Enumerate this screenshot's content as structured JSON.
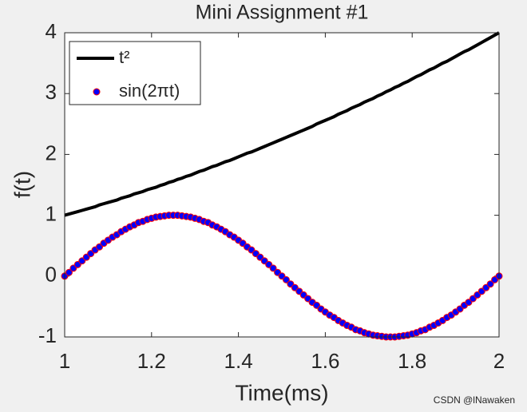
{
  "chart_data": {
    "type": "line",
    "title": "Mini Assignment #1",
    "xlabel": "Time(ms)",
    "ylabel": "f(t)",
    "x": [
      1,
      1.01,
      1.02,
      1.03,
      1.04,
      1.05,
      1.06,
      1.07,
      1.08,
      1.09,
      1.1,
      1.11,
      1.12,
      1.13,
      1.14,
      1.15,
      1.16,
      1.17,
      1.18,
      1.19,
      1.2,
      1.21,
      1.22,
      1.23,
      1.24,
      1.25,
      1.26,
      1.27,
      1.28,
      1.29,
      1.3,
      1.31,
      1.32,
      1.33,
      1.34,
      1.35,
      1.36,
      1.37,
      1.38,
      1.39,
      1.4,
      1.41,
      1.42,
      1.43,
      1.44,
      1.45,
      1.46,
      1.47,
      1.48,
      1.49,
      1.5,
      1.51,
      1.52,
      1.53,
      1.54,
      1.55,
      1.56,
      1.57,
      1.58,
      1.59,
      1.6,
      1.61,
      1.62,
      1.63,
      1.64,
      1.65,
      1.66,
      1.67,
      1.68,
      1.69,
      1.7,
      1.71,
      1.72,
      1.73,
      1.74,
      1.75,
      1.76,
      1.77,
      1.78,
      1.79,
      1.8,
      1.81,
      1.82,
      1.83,
      1.84,
      1.85,
      1.86,
      1.87,
      1.88,
      1.89,
      1.9,
      1.91,
      1.92,
      1.93,
      1.94,
      1.95,
      1.96,
      1.97,
      1.98,
      1.99,
      2
    ],
    "series": [
      {
        "name": "t²",
        "color": "#000000",
        "linewidth": 4,
        "marker": "none",
        "values": [
          1,
          1.02,
          1.04,
          1.06,
          1.08,
          1.1,
          1.12,
          1.14,
          1.17,
          1.19,
          1.21,
          1.23,
          1.25,
          1.28,
          1.3,
          1.32,
          1.35,
          1.37,
          1.39,
          1.42,
          1.44,
          1.46,
          1.49,
          1.51,
          1.54,
          1.56,
          1.59,
          1.61,
          1.64,
          1.66,
          1.69,
          1.72,
          1.74,
          1.77,
          1.8,
          1.82,
          1.85,
          1.88,
          1.9,
          1.93,
          1.96,
          1.99,
          2.02,
          2.04,
          2.07,
          2.1,
          2.13,
          2.16,
          2.19,
          2.22,
          2.25,
          2.28,
          2.31,
          2.34,
          2.37,
          2.4,
          2.43,
          2.46,
          2.5,
          2.53,
          2.56,
          2.59,
          2.62,
          2.66,
          2.69,
          2.72,
          2.76,
          2.79,
          2.82,
          2.86,
          2.89,
          2.92,
          2.96,
          2.99,
          3.03,
          3.06,
          3.1,
          3.13,
          3.17,
          3.2,
          3.24,
          3.28,
          3.31,
          3.35,
          3.39,
          3.42,
          3.46,
          3.5,
          3.53,
          3.57,
          3.61,
          3.65,
          3.69,
          3.72,
          3.76,
          3.8,
          3.84,
          3.88,
          3.92,
          3.96,
          4
        ]
      },
      {
        "name": "sin(2πt)",
        "color": "#0000ff",
        "edgecolor": "#ff0000",
        "linewidth": 0,
        "marker": "o",
        "values": [
          0,
          0.06,
          0.13,
          0.19,
          0.25,
          0.31,
          0.37,
          0.43,
          0.48,
          0.54,
          0.59,
          0.64,
          0.68,
          0.73,
          0.77,
          0.81,
          0.84,
          0.88,
          0.9,
          0.93,
          0.95,
          0.97,
          0.98,
          0.99,
          1,
          1,
          1,
          0.99,
          0.98,
          0.97,
          0.95,
          0.93,
          0.9,
          0.88,
          0.84,
          0.81,
          0.77,
          0.73,
          0.68,
          0.64,
          0.59,
          0.54,
          0.48,
          0.43,
          0.37,
          0.31,
          0.25,
          0.19,
          0.13,
          0.06,
          0,
          -0.06,
          -0.13,
          -0.19,
          -0.25,
          -0.31,
          -0.37,
          -0.43,
          -0.48,
          -0.54,
          -0.59,
          -0.64,
          -0.68,
          -0.73,
          -0.77,
          -0.81,
          -0.84,
          -0.88,
          -0.9,
          -0.93,
          -0.95,
          -0.97,
          -0.98,
          -0.99,
          -1,
          -1,
          -1,
          -0.99,
          -0.98,
          -0.97,
          -0.95,
          -0.93,
          -0.9,
          -0.88,
          -0.84,
          -0.81,
          -0.77,
          -0.73,
          -0.68,
          -0.64,
          -0.59,
          -0.54,
          -0.48,
          -0.43,
          -0.37,
          -0.31,
          -0.25,
          -0.19,
          -0.13,
          -0.06,
          0
        ]
      }
    ],
    "xlim": [
      1,
      2
    ],
    "xticks": [
      1,
      1.2,
      1.4,
      1.6,
      1.8,
      2
    ],
    "ylim": [
      -1,
      4
    ],
    "yticks": [
      -1,
      0,
      1,
      2,
      3,
      4
    ],
    "grid": false,
    "legend": "northwest",
    "watermark": "CSDN @lNawaken"
  }
}
